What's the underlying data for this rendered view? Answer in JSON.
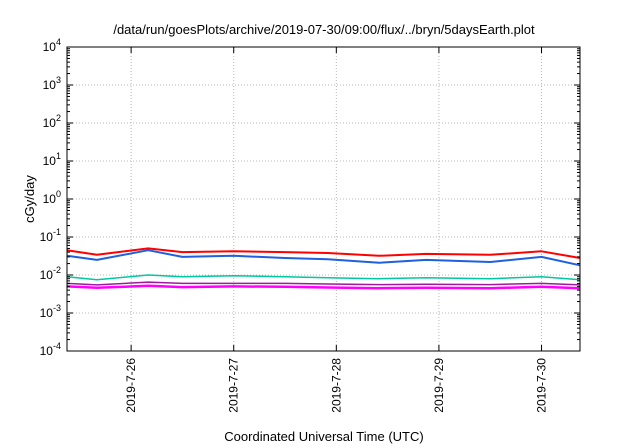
{
  "chart_data": {
    "type": "line",
    "title": "/data/run/goesPlots/archive/2019-07-30/09:00/flux/../bryn/5daysEarth.plot",
    "xlabel": "Coordinated Universal Time (UTC)",
    "ylabel": "cGy/day",
    "y_scale": "log",
    "ylim": [
      0.0001,
      10000
    ],
    "y_ticks": [
      {
        "base": "10",
        "exp": "-4"
      },
      {
        "base": "10",
        "exp": "-3"
      },
      {
        "base": "10",
        "exp": "-2"
      },
      {
        "base": "10",
        "exp": "-1"
      },
      {
        "base": "10",
        "exp": "0"
      },
      {
        "base": "10",
        "exp": "1"
      },
      {
        "base": "10",
        "exp": "2"
      },
      {
        "base": "10",
        "exp": "3"
      },
      {
        "base": "10",
        "exp": "4"
      }
    ],
    "xlim": [
      "2019-07-25T09:00",
      "2019-07-30T09:00"
    ],
    "x_ticks": [
      "2019-7-26",
      "2019-7-27",
      "2019-7-28",
      "2019-7-29",
      "2019-7-30"
    ],
    "grid": true,
    "series": [
      {
        "color": "#ff0000",
        "width": 2,
        "x": [
          "2019-07-25T09:00",
          "2019-07-25T16:00",
          "2019-07-26T04:00",
          "2019-07-26T12:00",
          "2019-07-27T00:00",
          "2019-07-27T12:00",
          "2019-07-27T22:00",
          "2019-07-28T10:00",
          "2019-07-28T21:00",
          "2019-07-29T12:00",
          "2019-07-30T00:00",
          "2019-07-30T09:00"
        ],
        "y": [
          0.045,
          0.034,
          0.05,
          0.04,
          0.042,
          0.04,
          0.038,
          0.032,
          0.036,
          0.034,
          0.042,
          0.028
        ]
      },
      {
        "color": "#1f5fe0",
        "width": 2,
        "x": [
          "2019-07-25T09:00",
          "2019-07-25T16:00",
          "2019-07-26T04:00",
          "2019-07-26T12:00",
          "2019-07-27T00:00",
          "2019-07-27T12:00",
          "2019-07-27T22:00",
          "2019-07-28T10:00",
          "2019-07-28T21:00",
          "2019-07-29T12:00",
          "2019-07-30T00:00",
          "2019-07-30T09:00"
        ],
        "y": [
          0.032,
          0.025,
          0.045,
          0.03,
          0.032,
          0.028,
          0.026,
          0.021,
          0.025,
          0.022,
          0.03,
          0.018
        ]
      },
      {
        "color": "#00c8a0",
        "width": 1.5,
        "x": [
          "2019-07-25T09:00",
          "2019-07-25T16:00",
          "2019-07-26T04:00",
          "2019-07-26T12:00",
          "2019-07-27T00:00",
          "2019-07-27T12:00",
          "2019-07-27T22:00",
          "2019-07-28T10:00",
          "2019-07-28T21:00",
          "2019-07-29T12:00",
          "2019-07-30T00:00",
          "2019-07-30T09:00"
        ],
        "y": [
          0.009,
          0.0075,
          0.01,
          0.009,
          0.0095,
          0.009,
          0.0085,
          0.008,
          0.0085,
          0.008,
          0.009,
          0.0075
        ]
      },
      {
        "color": "#a0189c",
        "width": 1.5,
        "x": [
          "2019-07-25T09:00",
          "2019-07-25T16:00",
          "2019-07-26T04:00",
          "2019-07-26T12:00",
          "2019-07-27T00:00",
          "2019-07-27T12:00",
          "2019-07-27T22:00",
          "2019-07-28T10:00",
          "2019-07-28T21:00",
          "2019-07-29T12:00",
          "2019-07-30T00:00",
          "2019-07-30T09:00"
        ],
        "y": [
          0.006,
          0.0055,
          0.0065,
          0.006,
          0.006,
          0.006,
          0.0058,
          0.0056,
          0.0057,
          0.0056,
          0.006,
          0.0055
        ]
      },
      {
        "color": "#ff00ff",
        "width": 2.5,
        "x": [
          "2019-07-25T09:00",
          "2019-07-25T16:00",
          "2019-07-26T04:00",
          "2019-07-26T12:00",
          "2019-07-27T00:00",
          "2019-07-27T12:00",
          "2019-07-27T22:00",
          "2019-07-28T10:00",
          "2019-07-28T21:00",
          "2019-07-29T12:00",
          "2019-07-30T00:00",
          "2019-07-30T09:00"
        ],
        "y": [
          0.005,
          0.0046,
          0.0052,
          0.0048,
          0.005,
          0.0049,
          0.0047,
          0.0045,
          0.0046,
          0.0045,
          0.0049,
          0.0045
        ]
      }
    ]
  }
}
